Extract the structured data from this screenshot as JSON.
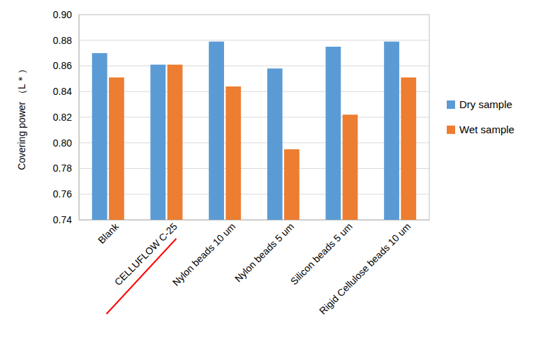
{
  "chart_data": {
    "type": "bar",
    "y_label": "Covering power （L＊）",
    "categories": [
      "Blank",
      "CELLUFLOW C-25",
      "Nylon beads 10 um",
      "Nylon beads 5 um",
      "Silicon beads 5 um",
      "Rigid Cellulose beads 10 um"
    ],
    "series": [
      {
        "name": "Dry sample",
        "color": "#5b9bd5",
        "values": [
          0.87,
          0.861,
          0.879,
          0.858,
          0.875,
          0.879
        ]
      },
      {
        "name": "Wet sample",
        "color": "#ed7d31",
        "values": [
          0.851,
          0.861,
          0.844,
          0.795,
          0.822,
          0.851
        ]
      }
    ],
    "ylim": [
      0.74,
      0.9
    ],
    "yticks": [
      0.74,
      0.76,
      0.78,
      {
        "value": 0.8,
        "label": "0.80"
      },
      0.82,
      0.84,
      0.86,
      0.88,
      {
        "value": 0.9,
        "label": "0.90"
      }
    ],
    "grid": true,
    "legend": "right"
  }
}
